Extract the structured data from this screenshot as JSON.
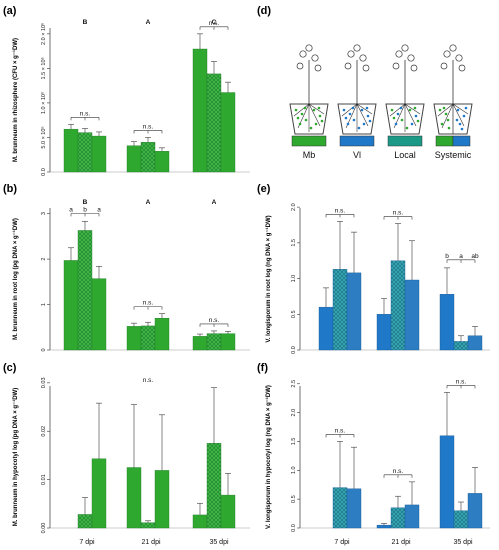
{
  "colors": {
    "green": "#2fa82f",
    "blue": "#1f78c8",
    "teal": "#1a9a86",
    "mesh_green": "#2a9a3a",
    "mesh_blue": "#2c7dc2",
    "axis": "#333333",
    "err": "#555555"
  },
  "x_categories": [
    "7 dpi",
    "21 dpi",
    "35 dpi"
  ],
  "legend_d": {
    "labels": [
      "Mb",
      "Vl",
      "Local",
      "Systemic"
    ],
    "colors": [
      "#2fa82f",
      "#1f78c8",
      "#1a9a86",
      "#1f78c8"
    ]
  },
  "chart_data": [
    {
      "id": "a",
      "panel_label": "(a)",
      "type": "bar",
      "series_color": "green",
      "ylabel": "M. brunneum in rhizosphere (CFU × g⁻¹DW)",
      "ylim": [
        0,
        2200000
      ],
      "yticks": [
        "0.0",
        "5.0 × 10⁵",
        "1.0 × 10⁶",
        "1.5 × 10⁶",
        "2.0 × 10⁶"
      ],
      "ytick_values": [
        0,
        500000,
        1000000,
        1500000,
        2000000
      ],
      "groups": [
        {
          "top_letter": "B",
          "bars": [
            {
              "value": 620000,
              "err": 70000,
              "pattern": "solid"
            },
            {
              "value": 570000,
              "err": 60000,
              "pattern": "mesh"
            },
            {
              "value": 520000,
              "err": 60000,
              "pattern": "solid"
            }
          ],
          "bracket": "n.s.",
          "letters": []
        },
        {
          "top_letter": "A",
          "bars": [
            {
              "value": 380000,
              "err": 60000,
              "pattern": "solid"
            },
            {
              "value": 430000,
              "err": 70000,
              "pattern": "mesh"
            },
            {
              "value": 300000,
              "err": 50000,
              "pattern": "solid"
            }
          ],
          "bracket": "n.s.",
          "letters": []
        },
        {
          "top_letter": "C",
          "bars": [
            {
              "value": 1780000,
              "err": 220000,
              "pattern": "solid"
            },
            {
              "value": 1420000,
              "err": 180000,
              "pattern": "mesh"
            },
            {
              "value": 1150000,
              "err": 150000,
              "pattern": "solid"
            }
          ],
          "bracket": "n.s.",
          "letters": []
        }
      ]
    },
    {
      "id": "b",
      "panel_label": "(b)",
      "type": "bar",
      "series_color": "green",
      "ylabel": "M. brunneum in root log (pg DNA × g⁻¹DW)",
      "ylim": [
        0,
        3.3
      ],
      "yticks": [
        "0",
        "1",
        "2",
        "3"
      ],
      "ytick_values": [
        0,
        1,
        2,
        3
      ],
      "groups": [
        {
          "top_letter": "B",
          "bars": [
            {
              "value": 1.97,
              "err": 0.28,
              "pattern": "solid"
            },
            {
              "value": 2.63,
              "err": 0.2,
              "pattern": "mesh"
            },
            {
              "value": 1.57,
              "err": 0.27,
              "pattern": "solid"
            }
          ],
          "bracket": "",
          "letters": [
            "a",
            "b",
            "a"
          ]
        },
        {
          "top_letter": "A",
          "bars": [
            {
              "value": 0.52,
              "err": 0.07,
              "pattern": "solid"
            },
            {
              "value": 0.53,
              "err": 0.08,
              "pattern": "mesh"
            },
            {
              "value": 0.7,
              "err": 0.1,
              "pattern": "solid"
            }
          ],
          "bracket": "n.s.",
          "letters": []
        },
        {
          "top_letter": "A",
          "bars": [
            {
              "value": 0.3,
              "err": 0.05,
              "pattern": "solid"
            },
            {
              "value": 0.36,
              "err": 0.06,
              "pattern": "mesh"
            },
            {
              "value": 0.36,
              "err": 0.05,
              "pattern": "solid"
            }
          ],
          "bracket": "n.s.",
          "letters": []
        }
      ]
    },
    {
      "id": "c",
      "panel_label": "(c)",
      "type": "bar",
      "series_color": "green",
      "ylabel": "M. brunneum in hypocotyl log (pg DNA × g⁻¹DW)",
      "ylim": [
        0,
        0.031
      ],
      "yticks": [
        "0.00",
        "0.01",
        "0.02",
        "0.03"
      ],
      "ytick_values": [
        0,
        0.01,
        0.02,
        0.03
      ],
      "overall_sig": "n.s.",
      "groups": [
        {
          "top_letter": "",
          "bars": [
            {
              "value": 0,
              "err": 0,
              "pattern": "solid"
            },
            {
              "value": 0.0028,
              "err": 0.0035,
              "pattern": "mesh"
            },
            {
              "value": 0.0143,
              "err": 0.0115,
              "pattern": "solid"
            }
          ],
          "bracket": "",
          "letters": []
        },
        {
          "top_letter": "",
          "bars": [
            {
              "value": 0.0125,
              "err": 0.013,
              "pattern": "solid"
            },
            {
              "value": 0.0011,
              "err": 0.0004,
              "pattern": "mesh"
            },
            {
              "value": 0.0119,
              "err": 0.0115,
              "pattern": "solid"
            }
          ],
          "bracket": "",
          "letters": []
        },
        {
          "top_letter": "",
          "bars": [
            {
              "value": 0.0027,
              "err": 0.0024,
              "pattern": "solid"
            },
            {
              "value": 0.0175,
              "err": 0.0115,
              "pattern": "mesh"
            },
            {
              "value": 0.0068,
              "err": 0.0045,
              "pattern": "solid"
            }
          ],
          "bracket": "",
          "letters": []
        }
      ]
    },
    {
      "id": "e",
      "panel_label": "(e)",
      "type": "bar",
      "series_color": "blue",
      "ylabel": "V. longisporum in root log (ng DNA × g⁻¹DW)",
      "ylim": [
        0,
        2.1
      ],
      "yticks": [
        "0.0",
        "0.5",
        "1.0",
        "1.5",
        "2.0"
      ],
      "ytick_values": [
        0,
        0.5,
        1,
        1.5,
        2
      ],
      "groups": [
        {
          "top_letter": "",
          "bars": [
            {
              "value": 0.6,
              "err": 0.27,
              "pattern": "solid"
            },
            {
              "value": 1.13,
              "err": 0.67,
              "pattern": "mesh"
            },
            {
              "value": 1.08,
              "err": 0.57,
              "pattern": "solid"
            }
          ],
          "bracket": "n.s.",
          "letters": []
        },
        {
          "top_letter": "",
          "bars": [
            {
              "value": 0.5,
              "err": 0.22,
              "pattern": "solid"
            },
            {
              "value": 1.25,
              "err": 0.52,
              "pattern": "mesh"
            },
            {
              "value": 0.98,
              "err": 0.55,
              "pattern": "solid"
            }
          ],
          "bracket": "n.s.",
          "letters": []
        },
        {
          "top_letter": "",
          "bars": [
            {
              "value": 0.78,
              "err": 0.37,
              "pattern": "solid"
            },
            {
              "value": 0.12,
              "err": 0.08,
              "pattern": "mesh"
            },
            {
              "value": 0.2,
              "err": 0.13,
              "pattern": "solid"
            }
          ],
          "bracket": "",
          "letters": [
            "b",
            "a",
            "ab"
          ]
        }
      ]
    },
    {
      "id": "f",
      "panel_label": "(f)",
      "type": "bar",
      "series_color": "blue",
      "ylabel": "V. longisporum in hypocotyl log (ng DNA × g⁻¹DW)",
      "ylim": [
        0,
        2.6
      ],
      "yticks": [
        "0.0",
        "0.5",
        "1.0",
        "1.5",
        "2.0",
        "2.5"
      ],
      "ytick_values": [
        0,
        0.5,
        1,
        1.5,
        2,
        2.5
      ],
      "groups": [
        {
          "top_letter": "",
          "bars": [
            {
              "value": 0,
              "err": 0,
              "pattern": "solid"
            },
            {
              "value": 0.7,
              "err": 0.8,
              "pattern": "mesh"
            },
            {
              "value": 0.68,
              "err": 0.72,
              "pattern": "solid"
            }
          ],
          "bracket": "n.s.",
          "letters": []
        },
        {
          "top_letter": "",
          "bars": [
            {
              "value": 0.05,
              "err": 0.03,
              "pattern": "solid"
            },
            {
              "value": 0.35,
              "err": 0.2,
              "pattern": "mesh"
            },
            {
              "value": 0.4,
              "err": 0.4,
              "pattern": "solid"
            }
          ],
          "bracket": "n.s.",
          "letters": []
        },
        {
          "top_letter": "",
          "bars": [
            {
              "value": 1.6,
              "err": 0.75,
              "pattern": "solid"
            },
            {
              "value": 0.3,
              "err": 0.15,
              "pattern": "mesh"
            },
            {
              "value": 0.6,
              "err": 0.45,
              "pattern": "solid"
            }
          ],
          "bracket": "n.s.",
          "letters": []
        }
      ]
    }
  ],
  "panel_d_label": "(d)"
}
